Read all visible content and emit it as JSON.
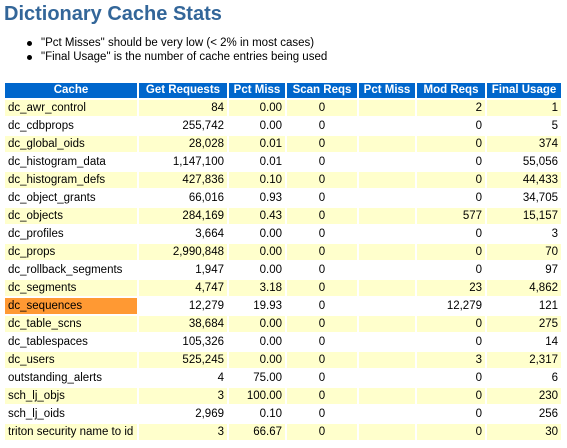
{
  "page": {
    "title": "Dictionary Cache Stats",
    "notes": [
      "\"Pct Misses\" should be very low (< 2% in most cases)",
      "\"Final Usage\" is the number of cache entries being used"
    ]
  },
  "colors": {
    "title": "#336699",
    "header_bg": "#0066cc",
    "header_text": "#ffffff",
    "row_alt_bg": "#ffffcc",
    "row_bg": "#ffffff",
    "highlight_bg": "#ff9933"
  },
  "table": {
    "headers": [
      "Cache",
      "Get Requests",
      "Pct Miss",
      "Scan Reqs",
      "Pct Miss",
      "Mod Reqs",
      "Final Usage"
    ],
    "highlighted_row": 11,
    "rows": [
      [
        "dc_awr_control",
        "84",
        "0.00",
        "0",
        "",
        "2",
        "1"
      ],
      [
        "dc_cdbprops",
        "255,742",
        "0.00",
        "0",
        "",
        "0",
        "5"
      ],
      [
        "dc_global_oids",
        "28,028",
        "0.01",
        "0",
        "",
        "0",
        "374"
      ],
      [
        "dc_histogram_data",
        "1,147,100",
        "0.01",
        "0",
        "",
        "0",
        "55,056"
      ],
      [
        "dc_histogram_defs",
        "427,836",
        "0.10",
        "0",
        "",
        "0",
        "44,433"
      ],
      [
        "dc_object_grants",
        "66,016",
        "0.93",
        "0",
        "",
        "0",
        "34,705"
      ],
      [
        "dc_objects",
        "284,169",
        "0.43",
        "0",
        "",
        "577",
        "15,157"
      ],
      [
        "dc_profiles",
        "3,664",
        "0.00",
        "0",
        "",
        "0",
        "3"
      ],
      [
        "dc_props",
        "2,990,848",
        "0.00",
        "0",
        "",
        "0",
        "70"
      ],
      [
        "dc_rollback_segments",
        "1,947",
        "0.00",
        "0",
        "",
        "0",
        "97"
      ],
      [
        "dc_segments",
        "4,747",
        "3.18",
        "0",
        "",
        "23",
        "4,862"
      ],
      [
        "dc_sequences",
        "12,279",
        "19.93",
        "0",
        "",
        "12,279",
        "121"
      ],
      [
        "dc_table_scns",
        "38,684",
        "0.00",
        "0",
        "",
        "0",
        "275"
      ],
      [
        "dc_tablespaces",
        "105,326",
        "0.00",
        "0",
        "",
        "0",
        "14"
      ],
      [
        "dc_users",
        "525,245",
        "0.00",
        "0",
        "",
        "3",
        "2,317"
      ],
      [
        "outstanding_alerts",
        "4",
        "75.00",
        "0",
        "",
        "0",
        "6"
      ],
      [
        "sch_lj_objs",
        "3",
        "100.00",
        "0",
        "",
        "0",
        "230"
      ],
      [
        "sch_lj_oids",
        "2,969",
        "0.10",
        "0",
        "",
        "0",
        "256"
      ],
      [
        "triton security name to id",
        "3",
        "66.67",
        "0",
        "",
        "0",
        "30"
      ]
    ]
  }
}
